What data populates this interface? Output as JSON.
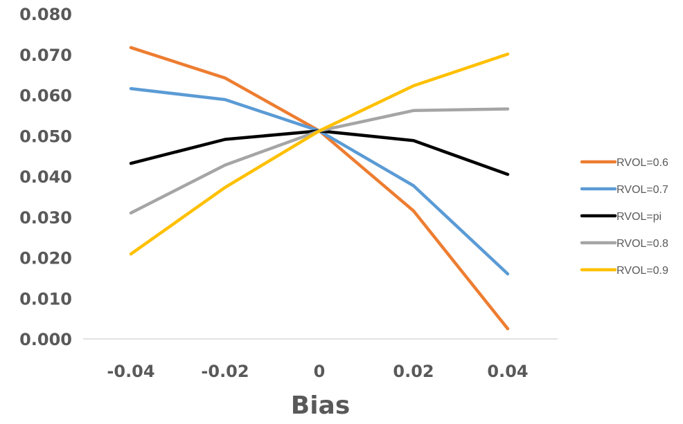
{
  "chart_data": {
    "type": "line",
    "title": "",
    "xlabel": "Bias",
    "ylabel": "",
    "x": [
      "-0.04",
      "-0.02",
      "0",
      "0.02",
      "0.04"
    ],
    "yticks": [
      "0.000",
      "0.010",
      "0.020",
      "0.030",
      "0.040",
      "0.050",
      "0.060",
      "0.070",
      "0.080"
    ],
    "ylim": [
      0,
      0.08
    ],
    "grid": false,
    "legend_position": "right",
    "series": [
      {
        "name": "RVOL=0.6",
        "color": "#ED7D31",
        "values": [
          0.0717,
          0.0642,
          0.0512,
          0.0315,
          0.0025
        ]
      },
      {
        "name": "RVOL=0.7",
        "color": "#5B9BD5",
        "values": [
          0.0616,
          0.0589,
          0.0512,
          0.0377,
          0.016
        ]
      },
      {
        "name": "RVOL=pi",
        "color": "#000000",
        "values": [
          0.0432,
          0.0491,
          0.0512,
          0.0488,
          0.0405
        ]
      },
      {
        "name": "RVOL=0.8",
        "color": "#A5A5A5",
        "values": [
          0.031,
          0.0428,
          0.0512,
          0.0562,
          0.0566
        ]
      },
      {
        "name": "RVOL=0.9",
        "color": "#FFC000",
        "values": [
          0.0209,
          0.0373,
          0.0512,
          0.0623,
          0.0701
        ]
      }
    ]
  }
}
